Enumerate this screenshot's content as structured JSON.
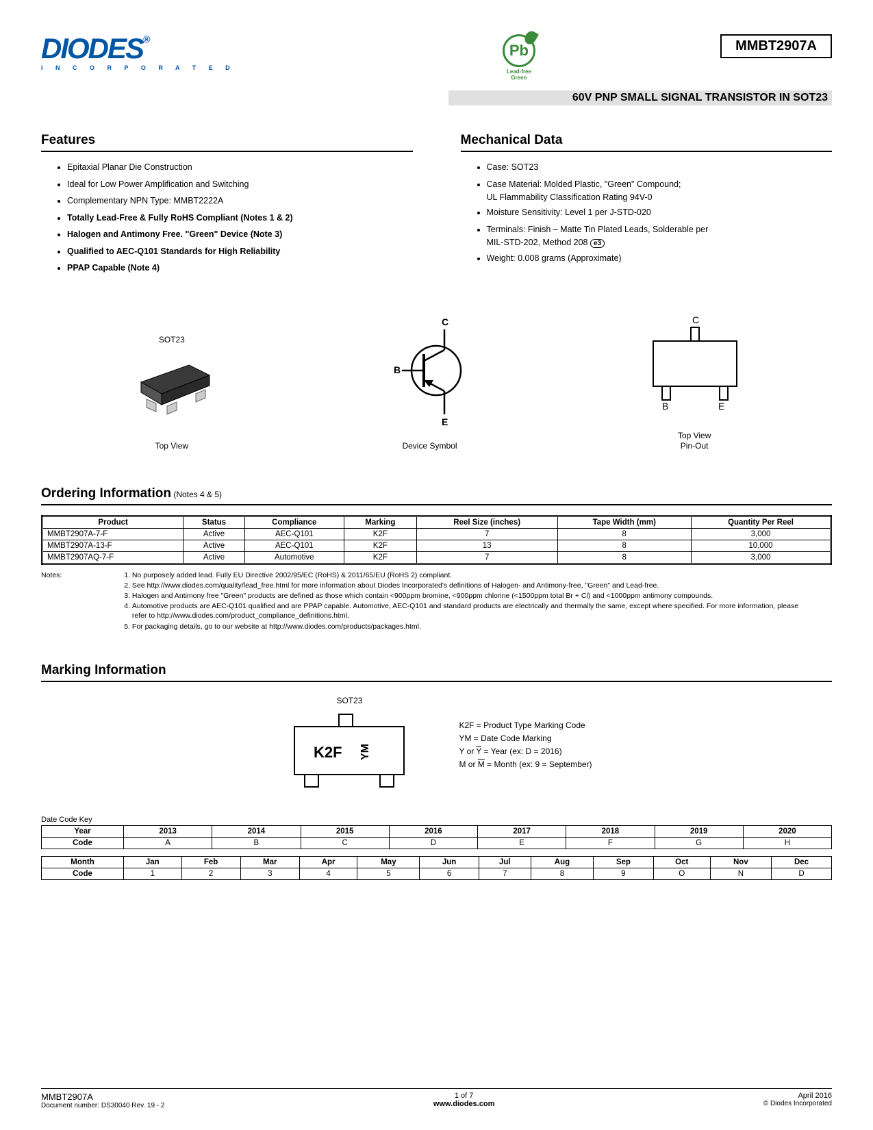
{
  "header": {
    "logo_text": "DIODES",
    "logo_sub": "I N C O R P O R A T E D",
    "pb_text": "Pb",
    "pb_label": "Lead-free Green",
    "part_number": "MMBT2907A",
    "subtitle": "60V PNP SMALL SIGNAL TRANSISTOR IN SOT23"
  },
  "features": {
    "title": "Features",
    "items": [
      {
        "text": "Epitaxial Planar Die Construction",
        "bold": false
      },
      {
        "text": "Ideal for Low Power Amplification and Switching",
        "bold": false
      },
      {
        "text": "Complementary NPN Type: MMBT2222A",
        "bold": false
      },
      {
        "text": "Totally Lead-Free & Fully RoHS Compliant (Notes 1 & 2)",
        "bold": true
      },
      {
        "text": "Halogen and Antimony Free. \"Green\" Device (Note 3)",
        "bold": true
      },
      {
        "text": "Qualified to AEC-Q101 Standards for High Reliability",
        "bold": true
      },
      {
        "text": "PPAP Capable (Note 4)",
        "bold": true
      }
    ]
  },
  "mechanical": {
    "title": "Mechanical Data",
    "items": [
      "Case: SOT23",
      "Case Material:  Molded Plastic, \"Green\" Compound;",
      "Moisture Sensitivity: Level 1 per J-STD-020",
      "Terminals: Finish – Matte Tin Plated Leads, Solderable per",
      "Weight: 0.008 grams (Approximate)"
    ],
    "sub1": "UL Flammability Classification Rating 94V-0",
    "sub2": "MIL-STD-202, Method 208",
    "e3": "e3"
  },
  "diagrams": {
    "d1_title": "SOT23",
    "d1_label": "Top View",
    "d2_label": "Device Symbol",
    "d2_c": "C",
    "d2_b": "B",
    "d2_e": "E",
    "d3_label1": "Top View",
    "d3_label2": "Pin-Out",
    "d3_c": "C",
    "d3_b": "B",
    "d3_e": "E"
  },
  "ordering": {
    "title": "Ordering Information",
    "notes_suffix": " (Notes 4 & 5)",
    "columns": [
      "Product",
      "Status",
      "Compliance",
      "Marking",
      "Reel Size (inches)",
      "Tape Width (mm)",
      "Quantity Per Reel"
    ],
    "rows": [
      [
        "MMBT2907A-7-F",
        "Active",
        "AEC-Q101",
        "K2F",
        "7",
        "8",
        "3,000"
      ],
      [
        "MMBT2907A-13-F",
        "Active",
        "AEC-Q101",
        "K2F",
        "13",
        "8",
        "10,000"
      ],
      [
        "MMBT2907AQ-7-F",
        "Active",
        "Automotive",
        "K2F",
        "7",
        "8",
        "3,000"
      ]
    ]
  },
  "notes": {
    "label": "Notes:",
    "items": [
      "No purposely added lead. Fully EU Directive 2002/95/EC (RoHS) & 2011/65/EU (RoHS 2) compliant.",
      "See http://www.diodes.com/quality/lead_free.html for more information about Diodes Incorporated's definitions of Halogen- and Antimony-free, \"Green\" and Lead-free.",
      "Halogen and Antimony free \"Green\" products are defined as those which contain <900ppm bromine, <900ppm chlorine (<1500ppm total Br + Cl) and <1000ppm antimony compounds.",
      "Automotive products are AEC-Q101 qualified and are PPAP capable. Automotive, AEC-Q101 and standard products are electrically and thermally the same, except where specified. For more information, please refer to http://www.diodes.com/product_compliance_definitions.html.",
      "For packaging details, go to our website at http://www.diodes.com/products/packages.html."
    ]
  },
  "marking": {
    "title": "Marking Information",
    "pkg_label": "SOT23",
    "code1": "K2F",
    "code2": "YM",
    "line1": "K2F = Product Type Marking Code",
    "line2": "YM = Date Code Marking",
    "line3a": "Y or ",
    "line3b": "Y",
    "line3c": " = Year (ex: D = 2016)",
    "line4a": "M or ",
    "line4b": "M",
    "line4c": " = Month (ex: 9 = September)"
  },
  "datekey": {
    "label": "Date Code Key",
    "year_row_label": "Year",
    "years": [
      "2013",
      "2014",
      "2015",
      "2016",
      "2017",
      "2018",
      "2019",
      "2020"
    ],
    "code_label": "Code",
    "year_codes": [
      "A",
      "B",
      "C",
      "D",
      "E",
      "F",
      "G",
      "H"
    ],
    "month_row_label": "Month",
    "months": [
      "Jan",
      "Feb",
      "Mar",
      "Apr",
      "May",
      "Jun",
      "Jul",
      "Aug",
      "Sep",
      "Oct",
      "Nov",
      "Dec"
    ],
    "month_codes": [
      "1",
      "2",
      "3",
      "4",
      "5",
      "6",
      "7",
      "8",
      "9",
      "O",
      "N",
      "D"
    ]
  },
  "footer": {
    "part": "MMBT2907A",
    "docnum": "Document number: DS30040 Rev. 19 - 2",
    "page": "1 of 7",
    "url": "www.diodes.com",
    "date": "April 2016",
    "copyright": "© Diodes Incorporated"
  }
}
